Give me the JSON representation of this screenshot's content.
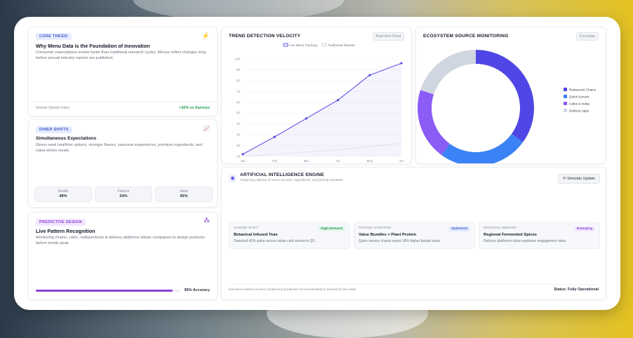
{
  "core": {
    "tag": "Core Thesis",
    "title": "Why Menu Data is the Foundation of Innovation",
    "body": "Consumer expectations evolve faster than traditional research cycles. Menus reflect changes long before annual industry reports are published.",
    "footer_label": "Market Speed Index",
    "footer_value": "+42% vs Surveys"
  },
  "diner": {
    "tag": "Diner Shifts",
    "title": "Simultaneous Expectations",
    "body": "Diners seek healthier options, stronger flavors, seasonal experiences, premium ingredients, and value-driven meals.",
    "stats": [
      {
        "label": "Health",
        "value": "48%"
      },
      {
        "label": "Flavors",
        "value": "54%"
      },
      {
        "label": "Value",
        "value": "45%"
      }
    ]
  },
  "predictive": {
    "tag": "Predictive Design",
    "title": "Live Pattern Recognition",
    "body": "Monitoring chains, cafes, independents & delivery platforms allows companies to design products before trends peak.",
    "accuracy_label": "95% Accuracy",
    "accuracy_value": 0.95
  },
  "trend": {
    "title": "TREND DETECTION VELOCITY",
    "pill": "Real-time Feed"
  },
  "ecosystem": {
    "title": "ECOSYSTEM SOURCE MONITORING",
    "pill": "Coverage"
  },
  "ai": {
    "title": "ARTIFICIAL INTELLIGENCE ENGINE",
    "subtitle": "Analyzing millions of menu records, ingredients, and pricing variables",
    "button": "Simulate Update",
    "insights": [
      {
        "category": "Cuisine Shift",
        "badge": "High Demand",
        "title": "Botanical Infused Teas",
        "desc": "Detected 42% spike across urban cafe menus in Q2."
      },
      {
        "category": "Pricing Variation",
        "badge": "Optimized",
        "title": "Value Bundles + Plant Protein",
        "desc": "Quick-service chains report 18% higher basket sizes."
      },
      {
        "category": "Regional Demand",
        "badge": "Emerging",
        "title": "Regional Fermented Spices",
        "desc": "Delivery platforms show explosive engagement rates."
      }
    ],
    "footer_left": "Decision-makers receive continuous predictive recommendations backed by live data.",
    "footer_right": "Status: Fully Operational"
  },
  "colors": {
    "accent": "#4f46e5",
    "green": "#1f9b50",
    "violet": "#8b3fd6"
  },
  "chart_data": [
    {
      "type": "line",
      "categories": [
        "Jan",
        "Feb",
        "Mar",
        "Apr",
        "May",
        "Jun"
      ],
      "series": [
        {
          "name": "Live Menu Tracking",
          "values": [
            12,
            28,
            45,
            62,
            85,
            96
          ],
          "color": "#4f46e5"
        },
        {
          "name": "Traditional Reports",
          "values": [
            10,
            12,
            14,
            16,
            19,
            22
          ],
          "color": "#c3c6d2"
        }
      ],
      "yticks": [
        10,
        20,
        30,
        40,
        50,
        60,
        70,
        80,
        90,
        100
      ],
      "ylim": [
        10,
        100
      ],
      "legend": "top"
    },
    {
      "type": "pie",
      "labels": [
        "Restaurant Chains",
        "Quick-Service",
        "Cafes & Indep.",
        "Delivery Apps"
      ],
      "values": [
        35,
        25,
        20,
        20
      ],
      "colors": [
        "#4f46e5",
        "#3b82f6",
        "#8b5cf6",
        "#cfd6e0"
      ],
      "legend": "right"
    }
  ]
}
